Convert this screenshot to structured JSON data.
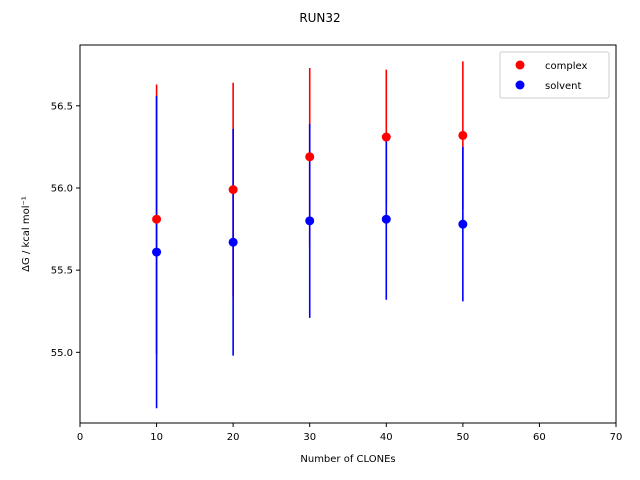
{
  "chart_data": {
    "type": "scatter",
    "title": "RUN32",
    "xlabel": "Number of CLONEs",
    "ylabel": "ΔG / kcal mol⁻¹",
    "xlim": [
      0,
      70
    ],
    "ylim": [
      54.57,
      56.87
    ],
    "xticks": [
      0,
      10,
      20,
      30,
      40,
      50,
      60,
      70
    ],
    "yticks": [
      55.0,
      55.5,
      56.0,
      56.5
    ],
    "ytick_labels": [
      "55.0",
      "55.5",
      "56.0",
      "56.5"
    ],
    "grid": false,
    "legend_position": "top-right",
    "series": [
      {
        "name": "complex",
        "color": "#ff0000",
        "x": [
          10,
          20,
          30,
          40,
          50
        ],
        "y": [
          55.81,
          55.99,
          56.19,
          56.31,
          56.32
        ],
        "err": [
          0.82,
          0.65,
          0.54,
          0.41,
          0.45
        ]
      },
      {
        "name": "solvent",
        "color": "#0000ff",
        "x": [
          10,
          20,
          30,
          40,
          50
        ],
        "y": [
          55.61,
          55.67,
          55.8,
          55.81,
          55.78
        ],
        "err": [
          0.95,
          0.69,
          0.59,
          0.49,
          0.47
        ]
      }
    ]
  }
}
